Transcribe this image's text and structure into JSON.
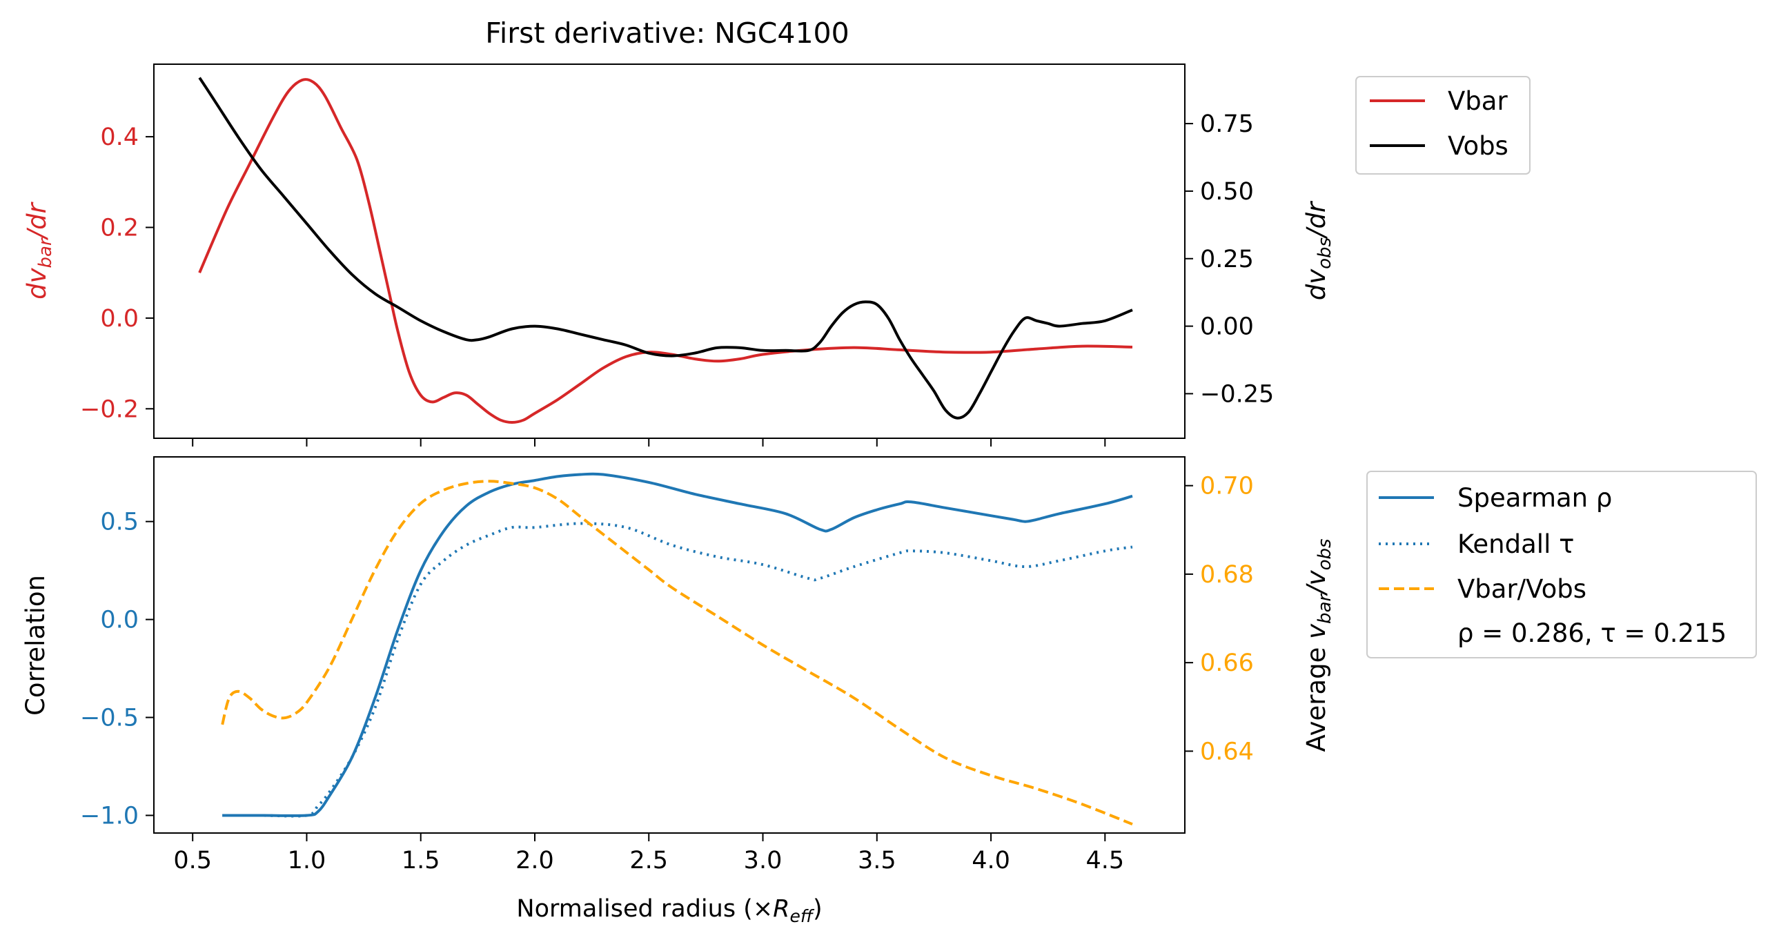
{
  "figure_title": "First derivative: NGC4100",
  "x_label": "Normalised radius (×R_eff)",
  "colors": {
    "vbar": "#d62728",
    "vobs": "#000000",
    "spearman": "#1f77b4",
    "kendall": "#1f77b4",
    "ratio": "#ffa500"
  },
  "chart_data": [
    {
      "type": "line",
      "title": "First derivative: NGC4100",
      "xlim": [
        0.33,
        4.85
      ],
      "xticks": [
        "",
        "",
        "",
        "",
        "",
        "",
        "",
        "",
        ""
      ],
      "left_axis": {
        "label": "dv_bar/dr",
        "ylim": [
          -0.265,
          0.56
        ],
        "ticks": [
          -0.2,
          0.0,
          0.2,
          0.4
        ],
        "tick_labels": [
          "−0.2",
          "0.0",
          "0.2",
          "0.4"
        ],
        "color": "#d62728"
      },
      "right_axis": {
        "label": "dv_obs/dr",
        "ylim": [
          -0.415,
          0.97
        ],
        "ticks": [
          -0.25,
          0.0,
          0.25,
          0.5,
          0.75
        ],
        "tick_labels": [
          "−0.25",
          "0.00",
          "0.25",
          "0.50",
          "0.75"
        ],
        "color": "#000000"
      },
      "series": [
        {
          "name": "Vbar",
          "axis": "left",
          "style": "solid",
          "color": "#d62728",
          "x": [
            0.53,
            0.65,
            0.75,
            0.85,
            0.92,
            0.98,
            1.03,
            1.08,
            1.15,
            1.22,
            1.27,
            1.32,
            1.36,
            1.4,
            1.45,
            1.5,
            1.55,
            1.6,
            1.65,
            1.7,
            1.75,
            1.8,
            1.85,
            1.9,
            1.95,
            2.0,
            2.1,
            2.2,
            2.3,
            2.4,
            2.5,
            2.6,
            2.7,
            2.8,
            2.9,
            3.0,
            3.2,
            3.4,
            3.6,
            3.8,
            4.0,
            4.2,
            4.4,
            4.62
          ],
          "y": [
            0.1,
            0.24,
            0.34,
            0.44,
            0.5,
            0.525,
            0.52,
            0.49,
            0.42,
            0.35,
            0.26,
            0.15,
            0.06,
            -0.03,
            -0.12,
            -0.17,
            -0.185,
            -0.175,
            -0.165,
            -0.17,
            -0.19,
            -0.21,
            -0.225,
            -0.23,
            -0.225,
            -0.21,
            -0.18,
            -0.145,
            -0.11,
            -0.085,
            -0.075,
            -0.08,
            -0.09,
            -0.095,
            -0.09,
            -0.08,
            -0.07,
            -0.065,
            -0.07,
            -0.075,
            -0.075,
            -0.068,
            -0.062,
            -0.064
          ]
        },
        {
          "name": "Vobs",
          "axis": "right",
          "style": "solid",
          "color": "#000000",
          "x": [
            0.53,
            0.6,
            0.7,
            0.8,
            0.9,
            1.0,
            1.1,
            1.2,
            1.3,
            1.4,
            1.5,
            1.6,
            1.7,
            1.75,
            1.8,
            1.9,
            2.0,
            2.1,
            2.2,
            2.3,
            2.4,
            2.5,
            2.6,
            2.7,
            2.8,
            2.9,
            3.0,
            3.1,
            3.2,
            3.25,
            3.3,
            3.35,
            3.4,
            3.45,
            3.5,
            3.55,
            3.6,
            3.65,
            3.7,
            3.75,
            3.8,
            3.85,
            3.9,
            3.95,
            4.0,
            4.05,
            4.1,
            4.15,
            4.2,
            4.25,
            4.3,
            4.4,
            4.5,
            4.62
          ],
          "y": [
            0.92,
            0.83,
            0.7,
            0.58,
            0.48,
            0.38,
            0.28,
            0.19,
            0.12,
            0.07,
            0.02,
            -0.02,
            -0.05,
            -0.05,
            -0.04,
            -0.01,
            0.0,
            -0.01,
            -0.03,
            -0.05,
            -0.07,
            -0.1,
            -0.11,
            -0.1,
            -0.08,
            -0.08,
            -0.09,
            -0.09,
            -0.09,
            -0.06,
            0.0,
            0.05,
            0.08,
            0.09,
            0.08,
            0.03,
            -0.05,
            -0.12,
            -0.18,
            -0.24,
            -0.31,
            -0.34,
            -0.32,
            -0.25,
            -0.17,
            -0.09,
            -0.02,
            0.03,
            0.02,
            0.01,
            0.0,
            0.01,
            0.02,
            0.06
          ]
        }
      ],
      "legend": {
        "placement": "outside upper right",
        "entries": [
          "Vbar",
          "Vobs"
        ]
      }
    },
    {
      "type": "line",
      "xlim": [
        0.33,
        4.85
      ],
      "xticks": [
        "0.5",
        "1.0",
        "1.5",
        "2.0",
        "2.5",
        "3.0",
        "3.5",
        "4.0",
        "4.5"
      ],
      "xlabel": "Normalised radius (×R_eff)",
      "left_axis": {
        "label": "Correlation",
        "ylim": [
          -1.09,
          0.83
        ],
        "ticks": [
          -1.0,
          -0.5,
          0.0,
          0.5
        ],
        "tick_labels": [
          "−1.0",
          "−0.5",
          "0.0",
          "0.5"
        ],
        "color": "#1f77b4"
      },
      "right_axis": {
        "label": "Average v_bar/v_obs",
        "ylim": [
          0.6215,
          0.7065
        ],
        "ticks": [
          0.64,
          0.66,
          0.68,
          0.7
        ],
        "tick_labels": [
          "0.64",
          "0.66",
          "0.68",
          "0.70"
        ],
        "color": "#ffa500"
      },
      "series": [
        {
          "name": "Spearman ρ",
          "axis": "left",
          "style": "solid",
          "color": "#1f77b4",
          "x": [
            0.63,
            0.8,
            1.0,
            1.05,
            1.1,
            1.2,
            1.3,
            1.4,
            1.5,
            1.6,
            1.7,
            1.8,
            1.9,
            2.0,
            2.1,
            2.2,
            2.3,
            2.5,
            2.7,
            2.9,
            3.1,
            3.25,
            3.3,
            3.4,
            3.5,
            3.6,
            3.65,
            3.8,
            4.0,
            4.1,
            4.15,
            4.2,
            4.3,
            4.5,
            4.62
          ],
          "y": [
            -1.0,
            -1.0,
            -1.0,
            -0.98,
            -0.9,
            -0.7,
            -0.4,
            -0.05,
            0.25,
            0.45,
            0.58,
            0.65,
            0.69,
            0.71,
            0.73,
            0.74,
            0.74,
            0.7,
            0.64,
            0.59,
            0.54,
            0.46,
            0.46,
            0.52,
            0.56,
            0.59,
            0.6,
            0.57,
            0.53,
            0.51,
            0.5,
            0.51,
            0.54,
            0.59,
            0.63
          ]
        },
        {
          "name": "Kendall τ",
          "axis": "left",
          "style": "dotted",
          "color": "#1f77b4",
          "x": [
            0.63,
            0.8,
            1.0,
            1.05,
            1.1,
            1.2,
            1.3,
            1.4,
            1.5,
            1.6,
            1.7,
            1.8,
            1.9,
            2.0,
            2.2,
            2.4,
            2.6,
            2.8,
            3.0,
            3.2,
            3.25,
            3.4,
            3.6,
            3.65,
            3.8,
            4.0,
            4.15,
            4.3,
            4.5,
            4.62
          ],
          "y": [
            -1.0,
            -1.0,
            -1.0,
            -0.95,
            -0.88,
            -0.7,
            -0.45,
            -0.1,
            0.18,
            0.3,
            0.38,
            0.43,
            0.47,
            0.47,
            0.49,
            0.47,
            0.38,
            0.32,
            0.28,
            0.21,
            0.21,
            0.27,
            0.34,
            0.35,
            0.34,
            0.3,
            0.27,
            0.3,
            0.35,
            0.37
          ]
        },
        {
          "name": "Vbar/Vobs",
          "axis": "right",
          "style": "dashed",
          "color": "#ffa500",
          "x": [
            0.63,
            0.66,
            0.7,
            0.75,
            0.8,
            0.85,
            0.9,
            0.95,
            1.0,
            1.1,
            1.2,
            1.3,
            1.4,
            1.5,
            1.6,
            1.7,
            1.8,
            1.9,
            2.0,
            2.1,
            2.2,
            2.3,
            2.4,
            2.5,
            2.6,
            2.8,
            3.0,
            3.2,
            3.4,
            3.6,
            3.8,
            4.0,
            4.2,
            4.4,
            4.62
          ],
          "y": [
            0.646,
            0.652,
            0.6535,
            0.652,
            0.6495,
            0.648,
            0.6475,
            0.6485,
            0.651,
            0.659,
            0.67,
            0.681,
            0.69,
            0.696,
            0.699,
            0.7005,
            0.701,
            0.7005,
            0.6995,
            0.697,
            0.693,
            0.689,
            0.685,
            0.681,
            0.677,
            0.6705,
            0.664,
            0.658,
            0.652,
            0.645,
            0.6385,
            0.6345,
            0.6315,
            0.628,
            0.6235
          ]
        }
      ],
      "legend": {
        "placement": "outside upper right",
        "entries": [
          "Spearman ρ",
          "Kendall τ",
          "Vbar/Vobs"
        ],
        "annotation": "ρ = 0.286, τ = 0.215"
      }
    }
  ]
}
